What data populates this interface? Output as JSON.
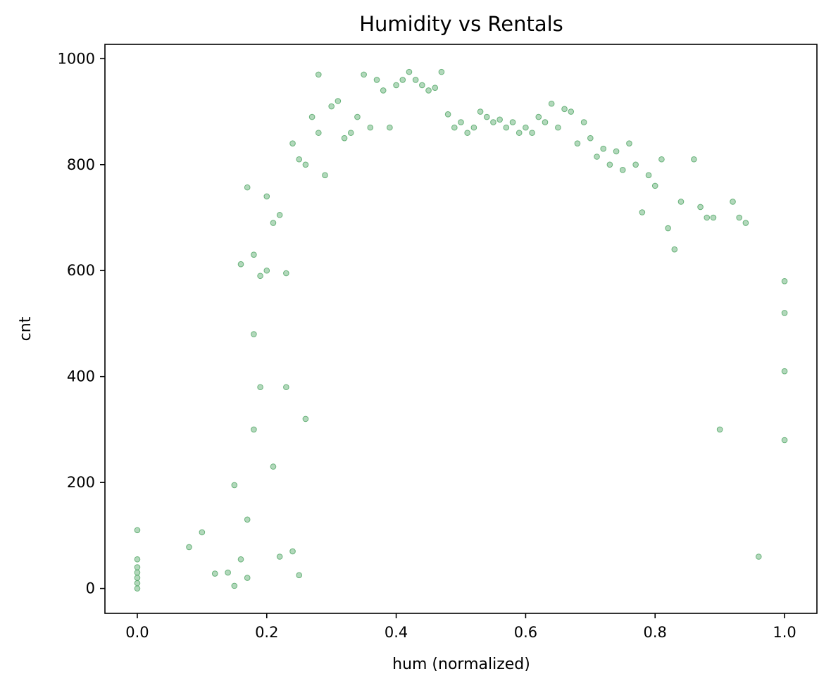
{
  "chart_data": {
    "type": "scatter",
    "title": "Humidity vs Rentals",
    "xlabel": "hum (normalized)",
    "ylabel": "cnt",
    "xlim": [
      -0.05,
      1.05
    ],
    "ylim": [
      -47,
      1027
    ],
    "x_ticks": [
      0.0,
      0.2,
      0.4,
      0.6,
      0.8,
      1.0
    ],
    "x_tick_labels": [
      "0.0",
      "0.2",
      "0.4",
      "0.6",
      "0.8",
      "1.0"
    ],
    "y_ticks": [
      0,
      200,
      400,
      600,
      800,
      1000
    ],
    "y_tick_labels": [
      "0",
      "200",
      "400",
      "600",
      "800",
      "1000"
    ],
    "grid": false,
    "legend": "none",
    "marker_color": "#55a868",
    "marker_alpha": 0.45,
    "series": [
      {
        "x": [
          0.0,
          0.0,
          0.0,
          0.0,
          0.0,
          0.0,
          0.0,
          0.08,
          0.1,
          0.12,
          0.14,
          0.15,
          0.15,
          0.16,
          0.16,
          0.17,
          0.17,
          0.17,
          0.18,
          0.18,
          0.18,
          0.19,
          0.19,
          0.2,
          0.2,
          0.21,
          0.21,
          0.22,
          0.22,
          0.23,
          0.23,
          0.24,
          0.24,
          0.25,
          0.25,
          0.26,
          0.26,
          0.27,
          0.28,
          0.28,
          0.29,
          0.3,
          0.31,
          0.32,
          0.33,
          0.34,
          0.35,
          0.36,
          0.37,
          0.38,
          0.39,
          0.4,
          0.41,
          0.42,
          0.43,
          0.44,
          0.45,
          0.46,
          0.47,
          0.48,
          0.49,
          0.5,
          0.51,
          0.52,
          0.53,
          0.54,
          0.55,
          0.56,
          0.57,
          0.58,
          0.59,
          0.6,
          0.61,
          0.62,
          0.63,
          0.64,
          0.65,
          0.66,
          0.67,
          0.68,
          0.69,
          0.7,
          0.71,
          0.72,
          0.73,
          0.74,
          0.75,
          0.76,
          0.77,
          0.78,
          0.79,
          0.8,
          0.81,
          0.82,
          0.83,
          0.84,
          0.86,
          0.87,
          0.88,
          0.89,
          0.9,
          0.92,
          0.93,
          0.94,
          0.96,
          1.0,
          1.0,
          1.0,
          1.0
        ],
        "y": [
          0,
          10,
          20,
          30,
          40,
          55,
          110,
          78,
          106,
          28,
          30,
          5,
          195,
          55,
          612,
          757,
          130,
          20,
          630,
          480,
          300,
          590,
          380,
          600,
          740,
          690,
          230,
          705,
          60,
          595,
          380,
          840,
          70,
          810,
          25,
          800,
          320,
          890,
          970,
          860,
          780,
          910,
          920,
          850,
          860,
          890,
          970,
          870,
          960,
          940,
          870,
          950,
          960,
          975,
          960,
          950,
          940,
          945,
          975,
          895,
          870,
          880,
          860,
          870,
          900,
          890,
          880,
          885,
          870,
          880,
          860,
          870,
          860,
          890,
          880,
          915,
          870,
          905,
          900,
          840,
          880,
          850,
          815,
          830,
          800,
          825,
          790,
          840,
          800,
          710,
          780,
          760,
          810,
          680,
          640,
          730,
          810,
          720,
          700,
          700,
          300,
          730,
          700,
          690,
          60,
          580,
          520,
          410,
          280
        ]
      }
    ]
  }
}
